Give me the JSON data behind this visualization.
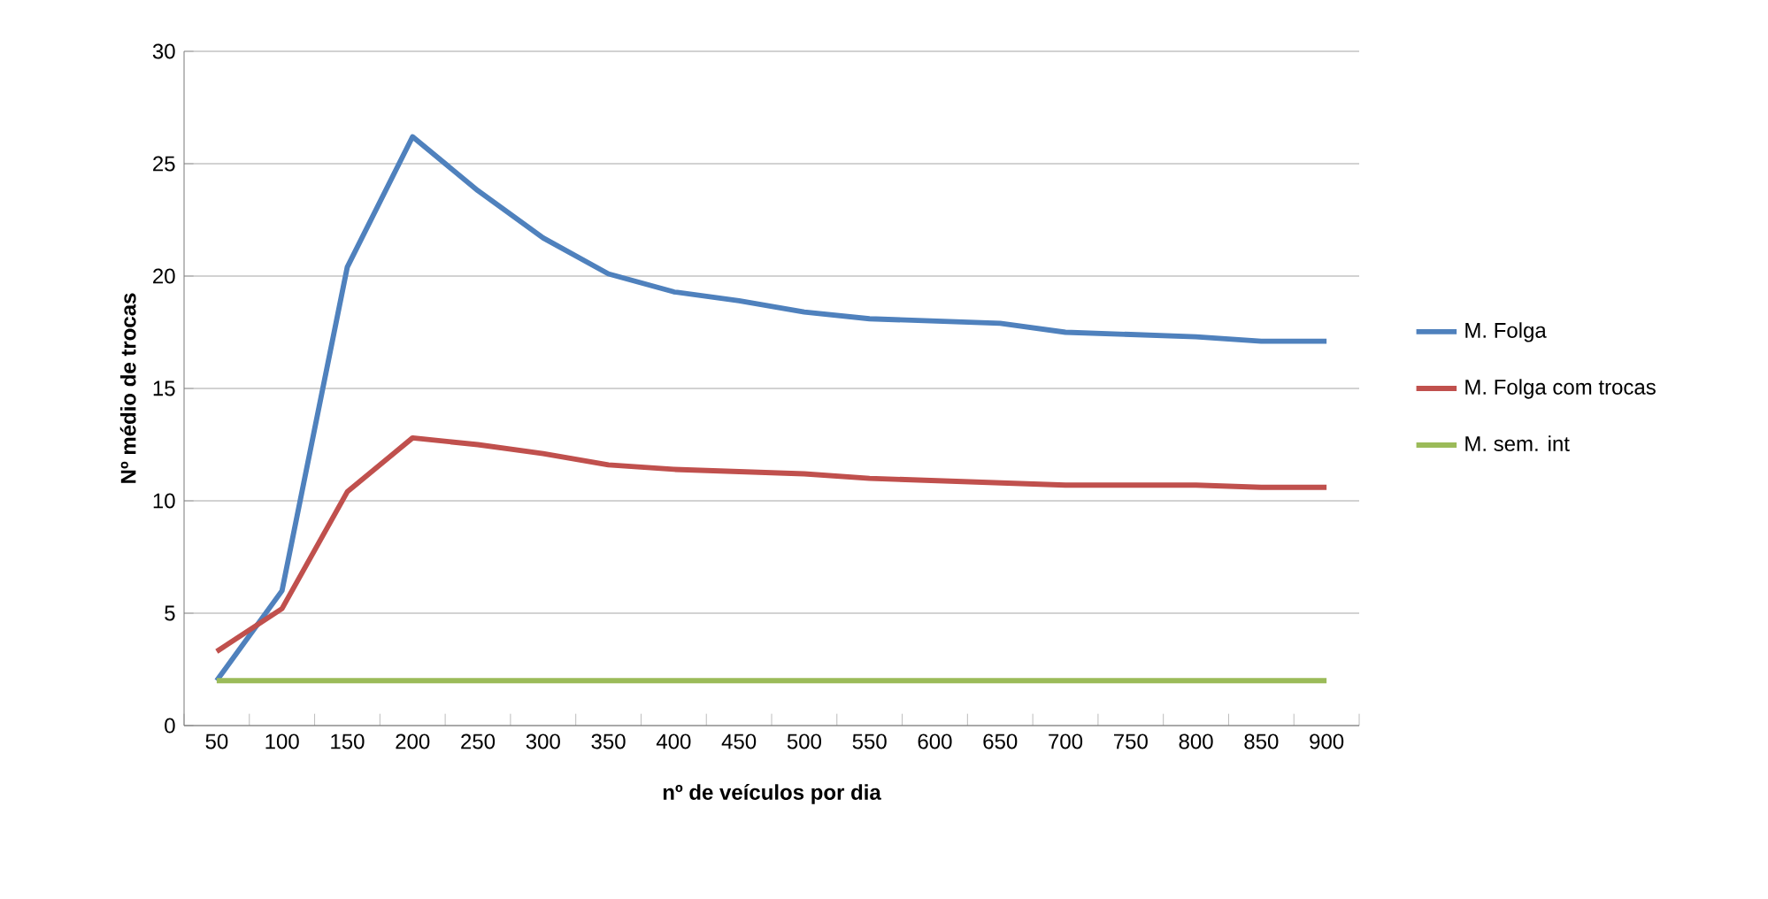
{
  "chart_data": {
    "type": "line",
    "xlabel": "nº de veículos por dia",
    "ylabel": "Nº médio de trocas",
    "categories": [
      "50",
      "100",
      "150",
      "200",
      "250",
      "300",
      "350",
      "400",
      "450",
      "500",
      "550",
      "600",
      "650",
      "700",
      "750",
      "800",
      "850",
      "900"
    ],
    "series": [
      {
        "name": "M. Folga",
        "color": "#4f81bd",
        "values": [
          2.0,
          6.0,
          20.4,
          26.2,
          23.8,
          21.7,
          20.1,
          19.3,
          18.9,
          18.4,
          18.1,
          18.0,
          17.9,
          17.5,
          17.4,
          17.3,
          17.1,
          17.1
        ]
      },
      {
        "name": "M. Folga com trocas",
        "color": "#c0504d",
        "values": [
          3.3,
          5.2,
          10.4,
          12.8,
          12.5,
          12.1,
          11.6,
          11.4,
          11.3,
          11.2,
          11.0,
          10.9,
          10.8,
          10.7,
          10.7,
          10.7,
          10.6,
          10.6
        ]
      },
      {
        "name": "M. sem. int",
        "color": "#9bbb59",
        "values": [
          2,
          2,
          2,
          2,
          2,
          2,
          2,
          2,
          2,
          2,
          2,
          2,
          2,
          2,
          2,
          2,
          2,
          2
        ]
      }
    ],
    "ylim": [
      0,
      30
    ],
    "yticks": [
      0,
      5,
      10,
      15,
      20,
      25,
      30
    ],
    "grid": "y",
    "legend": "right",
    "marker": "none",
    "line_style": "solid"
  }
}
